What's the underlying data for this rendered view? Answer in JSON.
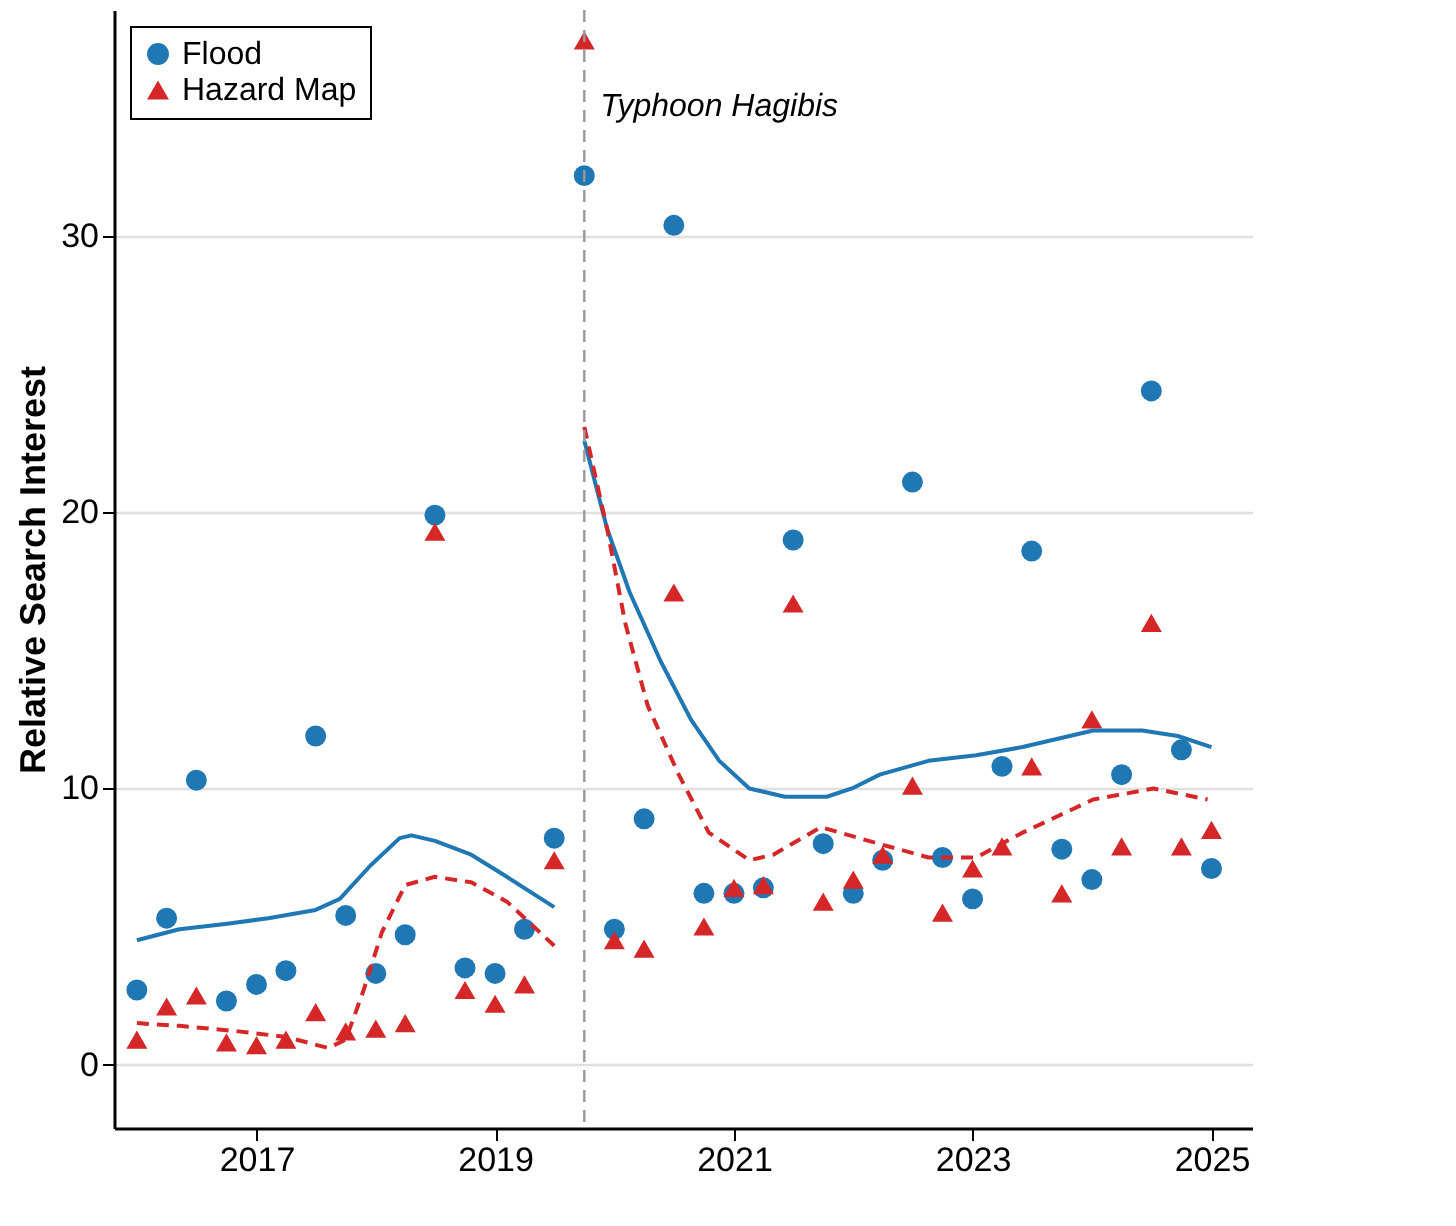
{
  "chart_data": {
    "type": "scatter",
    "ylabel": "Relative Search Interest",
    "x": [
      "2016-01",
      "2016-04",
      "2016-07",
      "2016-10",
      "2017-01",
      "2017-04",
      "2017-07",
      "2017-10",
      "2018-01",
      "2018-04",
      "2018-07",
      "2018-10",
      "2019-01",
      "2019-04",
      "2019-07",
      "2019-10",
      "2020-01",
      "2020-04",
      "2020-07",
      "2020-10",
      "2021-01",
      "2021-04",
      "2021-07",
      "2021-10",
      "2022-01",
      "2022-04",
      "2022-07",
      "2022-10",
      "2023-01",
      "2023-04",
      "2023-07",
      "2023-10",
      "2024-01",
      "2024-04",
      "2024-07",
      "2024-10",
      "2025-01"
    ],
    "series": [
      {
        "name": "Flood",
        "color": "#1f77b4",
        "marker": "circle",
        "values": [
          2.7,
          5.3,
          10.3,
          2.3,
          2.9,
          3.4,
          11.9,
          5.4,
          3.3,
          4.7,
          19.9,
          3.5,
          3.3,
          4.9,
          8.2,
          32.2,
          4.9,
          8.9,
          30.4,
          6.2,
          6.2,
          6.4,
          19.0,
          8.0,
          6.2,
          7.4,
          21.1,
          7.5,
          6.0,
          10.8,
          18.6,
          7.8,
          6.7,
          10.5,
          24.4,
          11.4,
          7.1
        ]
      },
      {
        "name": "Hazard Map",
        "color": "#d62728",
        "marker": "triangle",
        "values": [
          0.9,
          2.1,
          2.5,
          0.8,
          0.7,
          0.9,
          1.9,
          1.2,
          1.3,
          1.5,
          19.3,
          2.7,
          2.2,
          2.9,
          7.4,
          37.1,
          4.5,
          4.2,
          17.1,
          5.0,
          6.4,
          6.5,
          16.7,
          5.9,
          6.7,
          7.6,
          10.1,
          5.5,
          7.1,
          7.9,
          10.8,
          6.2,
          12.5,
          7.9,
          16.0,
          7.9,
          8.5
        ]
      },
      {
        "color": "#1f77b4",
        "type": "line",
        "line_style": "solid",
        "x": [
          "2016-01-01",
          "2016-05-10",
          "2016-10-04",
          "2017-02-06",
          "2017-07-01",
          "2017-09-13",
          "2017-12-15",
          "2018-03-15",
          "2018-04-20",
          "2018-07-01",
          "2018-10-20",
          "2019-02-06",
          "2019-07-01"
        ],
        "values": [
          4.5,
          4.9,
          5.1,
          5.3,
          5.6,
          6.0,
          7.2,
          8.2,
          8.3,
          8.1,
          7.6,
          6.8,
          5.7
        ]
      },
      {
        "color": "#d62728",
        "type": "line",
        "line_style": "dashed",
        "x": [
          "2016-01-01",
          "2016-05-10",
          "2016-11-06",
          "2017-04-01",
          "2017-08-08",
          "2017-10-01",
          "2017-11-25",
          "2018-01-20",
          "2018-04-01",
          "2018-07-01",
          "2018-10-20",
          "2019-02-06",
          "2019-04-20",
          "2019-07-01"
        ],
        "values": [
          1.5,
          1.4,
          1.2,
          1.0,
          0.6,
          0.9,
          2.7,
          4.8,
          6.5,
          6.8,
          6.6,
          5.9,
          5.1,
          4.3
        ]
      },
      {
        "color": "#1f77b4",
        "type": "line",
        "line_style": "solid",
        "x": [
          "2019-10-01",
          "2019-12-10",
          "2020-02-17",
          "2020-05-22",
          "2020-08-22",
          "2020-11-17",
          "2021-02-17",
          "2021-06-06",
          "2021-10-12",
          "2021-12-28",
          "2022-03-23",
          "2022-08-19",
          "2023-01-12",
          "2023-06-03",
          "2024-01-05",
          "2024-06-03",
          "2024-09-20",
          "2025-01-01"
        ],
        "values": [
          22.6,
          19.4,
          17.1,
          14.6,
          12.5,
          11.0,
          10.0,
          9.7,
          9.7,
          10.0,
          10.5,
          11.0,
          11.2,
          11.5,
          12.1,
          12.1,
          11.9,
          11.5
        ]
      },
      {
        "color": "#d62728",
        "type": "line",
        "line_style": "dashed",
        "x": [
          "2019-10-01",
          "2019-12-10",
          "2020-02-03",
          "2020-04-12",
          "2020-07-16",
          "2020-10-16",
          "2021-02-17",
          "2021-05-01",
          "2021-09-24",
          "2022-02-17",
          "2022-08-19",
          "2023-01-12",
          "2023-06-03",
          "2024-01-05",
          "2024-07-08",
          "2024-12-20"
        ],
        "values": [
          23.1,
          19.4,
          16.0,
          13.0,
          10.5,
          8.4,
          7.4,
          7.6,
          8.6,
          8.1,
          7.5,
          7.5,
          8.4,
          9.6,
          10.0,
          9.6
        ]
      }
    ],
    "xlim": [
      "2015-10-23",
      "2025-05-05"
    ],
    "xticks": [
      "2017",
      "2019",
      "2021",
      "2023",
      "2025"
    ],
    "ylim": [
      -2.3,
      38.2
    ],
    "yticks": [
      0,
      10,
      20,
      30
    ],
    "ref_lines": [
      {
        "axis": "x",
        "value": "2019-10-01",
        "label": "Typhoon Hagibis",
        "color": "#999999",
        "line_style": "dashed"
      }
    ],
    "grid": "y",
    "legend": "top left"
  }
}
